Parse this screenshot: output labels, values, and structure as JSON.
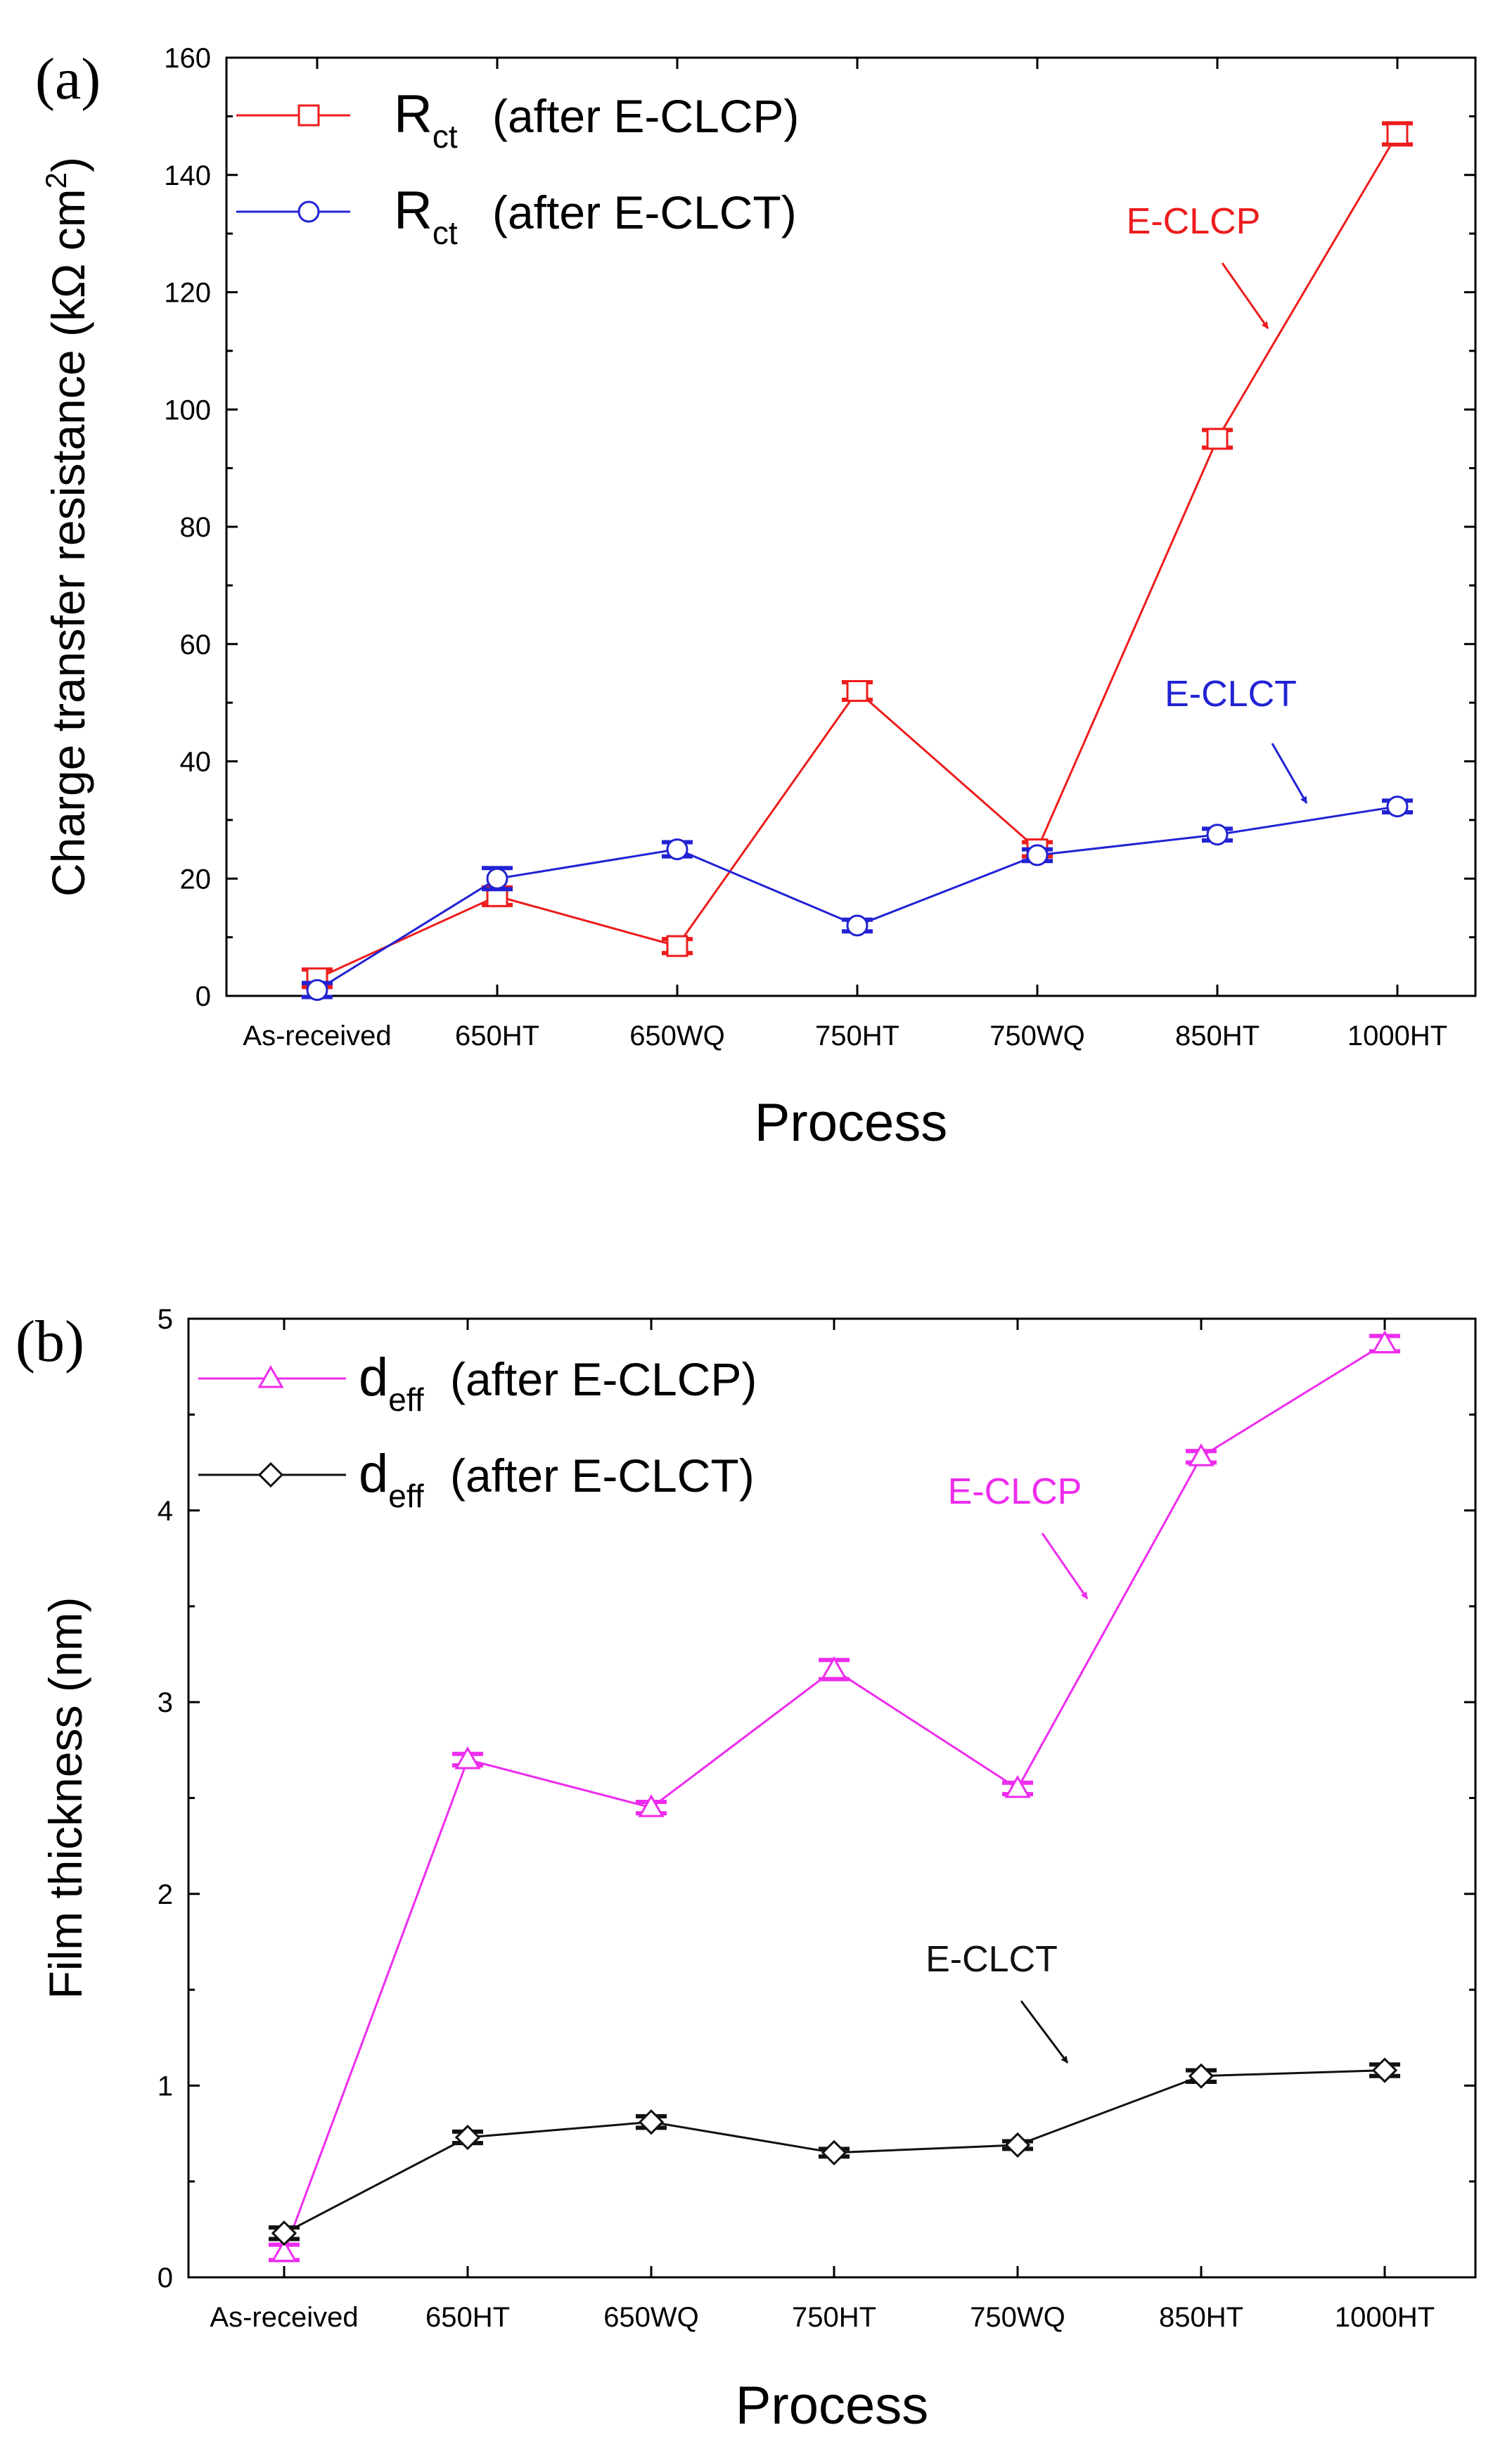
{
  "chart_data": [
    {
      "type": "line",
      "panel_label": "(a)",
      "xlabel": "Process",
      "ylabel": "Charge transfer resistance (kΩ cm²)",
      "ylabel_parts": {
        "main": "Charge transfer resistance (kΩ cm",
        "sup": "2",
        "tail": ")"
      },
      "ylim": [
        0,
        160
      ],
      "yticks": [
        "0",
        "20",
        "40",
        "60",
        "80",
        "100",
        "120",
        "140",
        "160"
      ],
      "categories": [
        "As-received",
        "650HT",
        "650WQ",
        "750HT",
        "750WQ",
        "850HT",
        "1000HT"
      ],
      "series": [
        {
          "name": "Rct (after E-CLCP)",
          "legend_main": "R",
          "legend_sub": "ct",
          "legend_text": "(after E-CLCP)",
          "marker": "square",
          "color": "#ee1c1c",
          "values": [
            3,
            17,
            8.5,
            52,
            25,
            95,
            147
          ],
          "errors": [
            1.5,
            1.5,
            1.2,
            1.5,
            1.2,
            1.5,
            1.8
          ]
        },
        {
          "name": "Rct (after E-CLCT)",
          "legend_main": "R",
          "legend_sub": "ct",
          "legend_text": "(after E-CLCT)",
          "marker": "circle",
          "color": "#2222d4",
          "values": [
            1,
            20,
            25,
            12,
            24,
            27.5,
            32.3
          ],
          "errors": [
            1.2,
            1.8,
            1.2,
            1.0,
            1.0,
            1.0,
            1.0
          ]
        }
      ],
      "annotations": [
        {
          "text": "E-CLCP",
          "color": "#ee1c1c"
        },
        {
          "text": "E-CLCT",
          "color": "#2222d4"
        }
      ]
    },
    {
      "type": "line",
      "panel_label": "(b)",
      "xlabel": "Process",
      "ylabel": "Film thickness (nm)",
      "ylim": [
        0,
        5
      ],
      "yticks": [
        "0",
        "1",
        "2",
        "3",
        "4",
        "5"
      ],
      "categories": [
        "As-received",
        "650HT",
        "650WQ",
        "750HT",
        "750WQ",
        "850HT",
        "1000HT"
      ],
      "series": [
        {
          "name": "deff (after E-CLCP)",
          "legend_main": "d",
          "legend_sub": "eff",
          "legend_text": "(after E-CLCP)",
          "marker": "triangle",
          "color": "#ee2cee",
          "values": [
            0.13,
            2.7,
            2.45,
            3.17,
            2.55,
            4.28,
            4.87
          ],
          "errors": [
            0.04,
            0.03,
            0.03,
            0.05,
            0.03,
            0.03,
            0.04
          ]
        },
        {
          "name": "deff (after E-CLCT)",
          "legend_main": "d",
          "legend_sub": "eff",
          "legend_text": "(after E-CLCT)",
          "marker": "diamond",
          "color": "#111111",
          "values": [
            0.23,
            0.73,
            0.81,
            0.65,
            0.69,
            1.05,
            1.08
          ],
          "errors": [
            0.03,
            0.03,
            0.03,
            0.02,
            0.02,
            0.03,
            0.03
          ]
        }
      ],
      "annotations": [
        {
          "text": "E-CLCP",
          "color": "#ee2cee"
        },
        {
          "text": "E-CLCT",
          "color": "#111111"
        }
      ]
    }
  ]
}
